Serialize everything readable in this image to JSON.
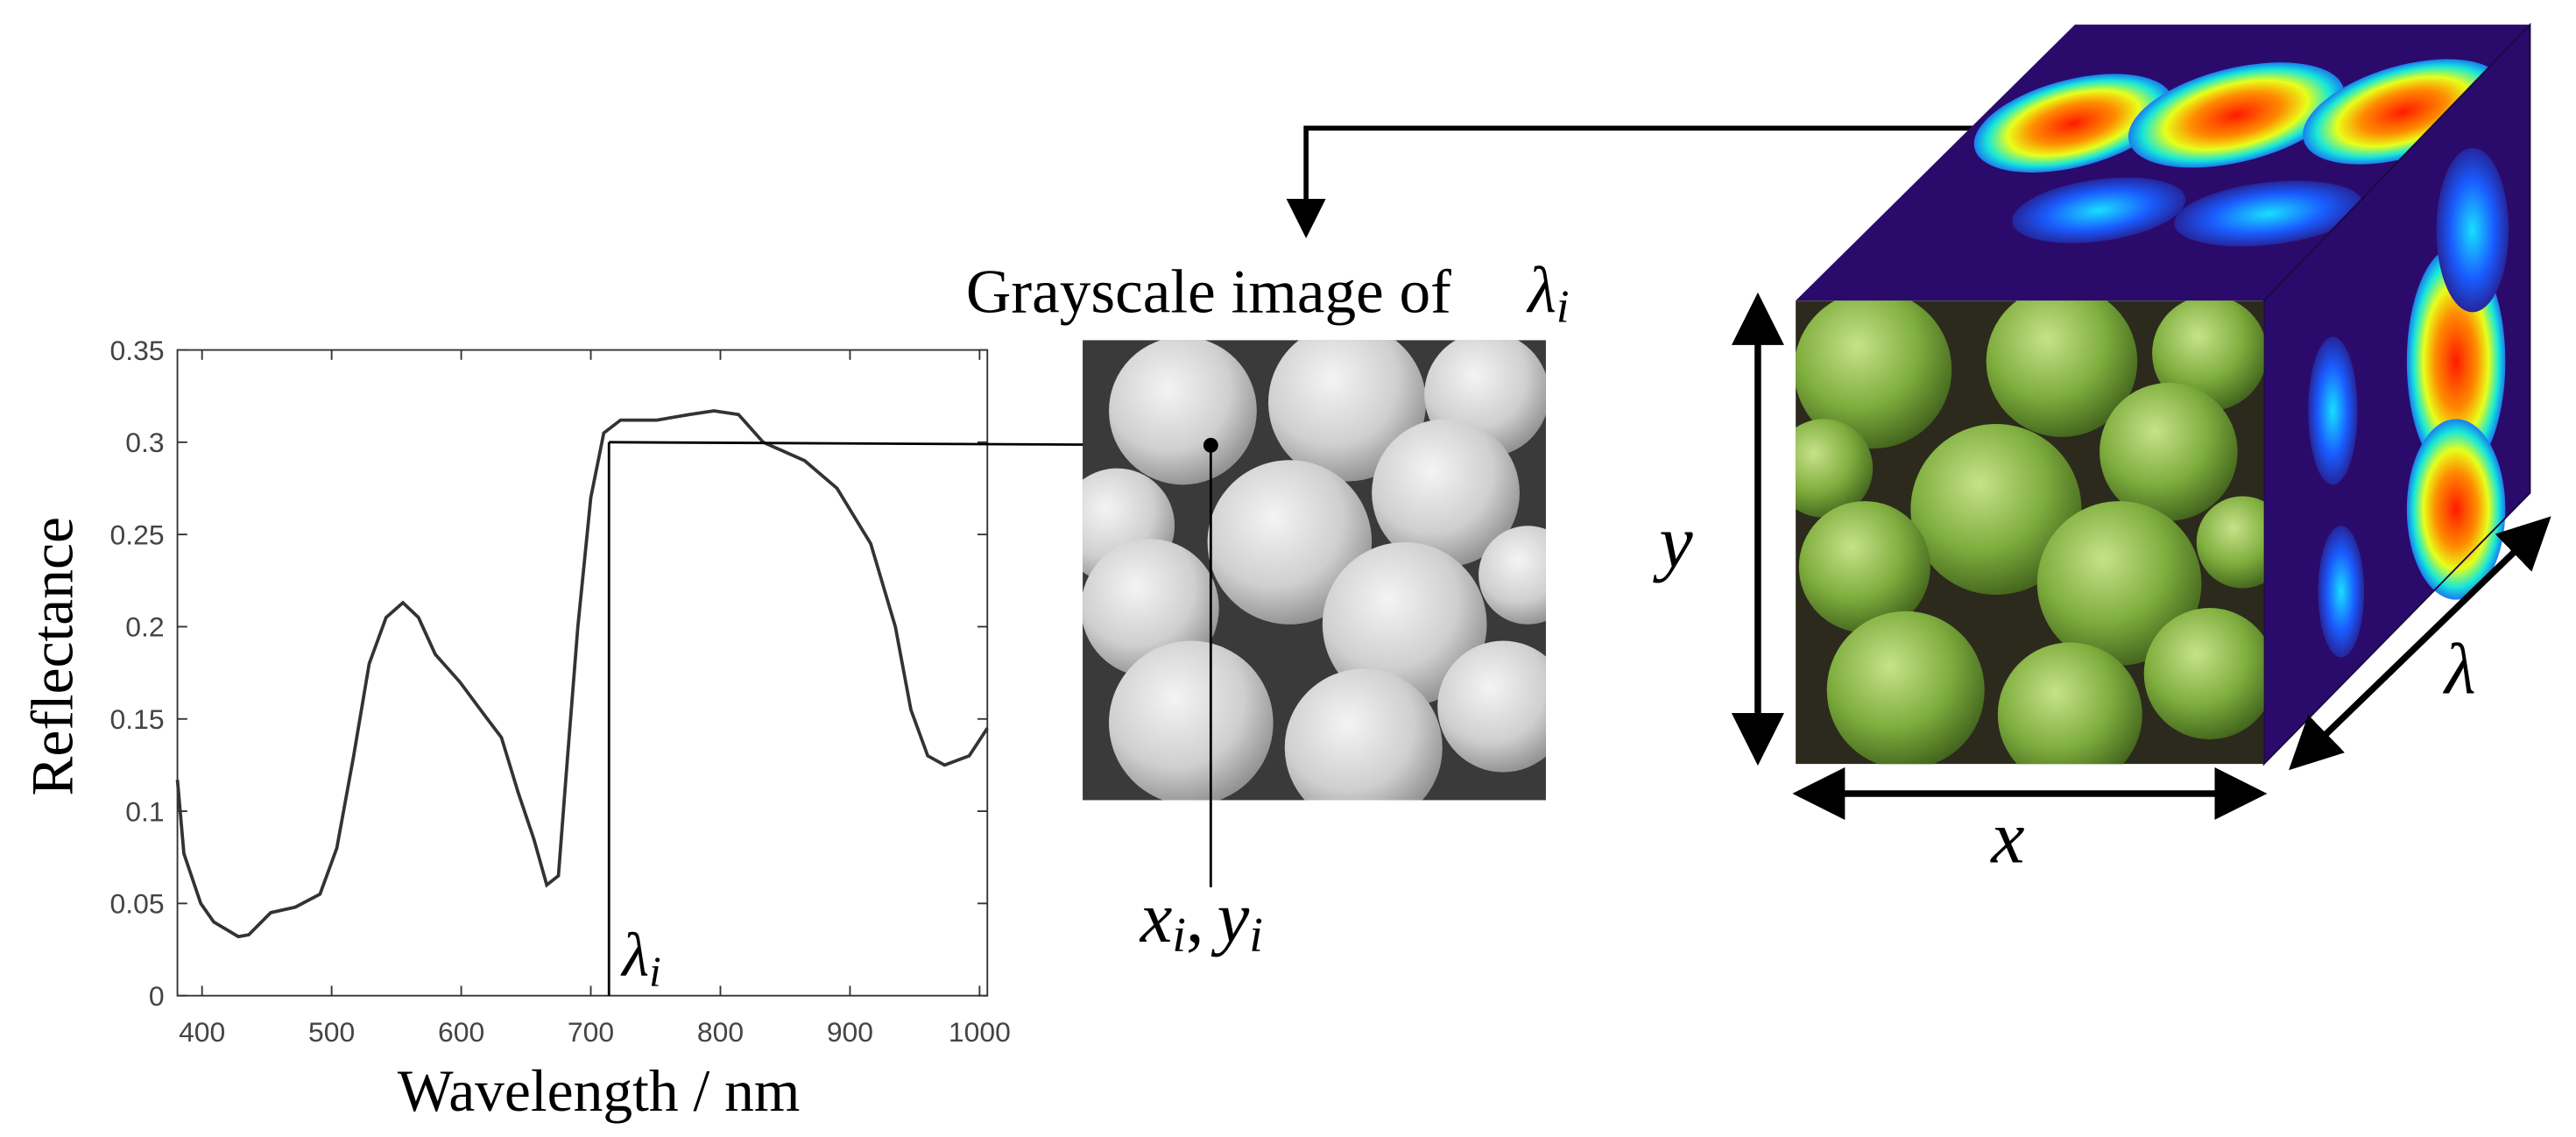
{
  "chart_data": {
    "type": "line",
    "xlabel": "Wavelength / nm",
    "ylabel": "Reflectance",
    "x": [
      381,
      386,
      399,
      409,
      428,
      436,
      453,
      472,
      491,
      504,
      517,
      529,
      542,
      555,
      567,
      580,
      599,
      618,
      631,
      644,
      656,
      666,
      675,
      681,
      690,
      700,
      710,
      723,
      751,
      776,
      795,
      814,
      833,
      865,
      890,
      916,
      935,
      947,
      960,
      973,
      992,
      1006
    ],
    "values": [
      0.117,
      0.077,
      0.05,
      0.04,
      0.032,
      0.033,
      0.045,
      0.048,
      0.055,
      0.08,
      0.13,
      0.18,
      0.205,
      0.213,
      0.205,
      0.185,
      0.17,
      0.152,
      0.14,
      0.11,
      0.085,
      0.06,
      0.065,
      0.12,
      0.2,
      0.27,
      0.305,
      0.312,
      0.312,
      0.315,
      0.317,
      0.315,
      0.3,
      0.29,
      0.275,
      0.245,
      0.2,
      0.155,
      0.13,
      0.125,
      0.13,
      0.145
    ],
    "color": "#333333",
    "xlim": [
      381,
      1006
    ],
    "xticks": [
      400,
      500,
      600,
      700,
      800,
      900,
      1000
    ],
    "ylim": [
      0,
      0.35
    ],
    "yticks": [
      0,
      0.05,
      0.1,
      0.15,
      0.2,
      0.25,
      0.3,
      0.35
    ],
    "grid": false,
    "annotation": {
      "x": 714,
      "y": 0.3,
      "symbol": "λ",
      "subscript": "i"
    }
  },
  "grayscale": {
    "title": "Grayscale  image of",
    "symbol": "λ",
    "subscript": "i"
  },
  "pixel_label": {
    "x": "x",
    "x_sub": "i",
    "sep": ",",
    "y": "y",
    "y_sub": "i"
  },
  "cube": {
    "x_label": "x",
    "y_label": "y",
    "lambda_label": "λ"
  }
}
